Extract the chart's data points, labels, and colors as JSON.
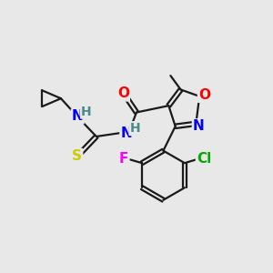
{
  "bg_color": "#e8e8e8",
  "bond_color": "#1a1a1a",
  "bond_width": 1.6,
  "atom_colors": {
    "N": "#0000ff",
    "O": "#ff0000",
    "S": "#cccc00",
    "F": "#ff00ff",
    "Cl": "#00aa00",
    "H": "#4a8a8a",
    "C": "#1a1a1a",
    "methyl": "#1a1a1a"
  },
  "font_size": 11
}
